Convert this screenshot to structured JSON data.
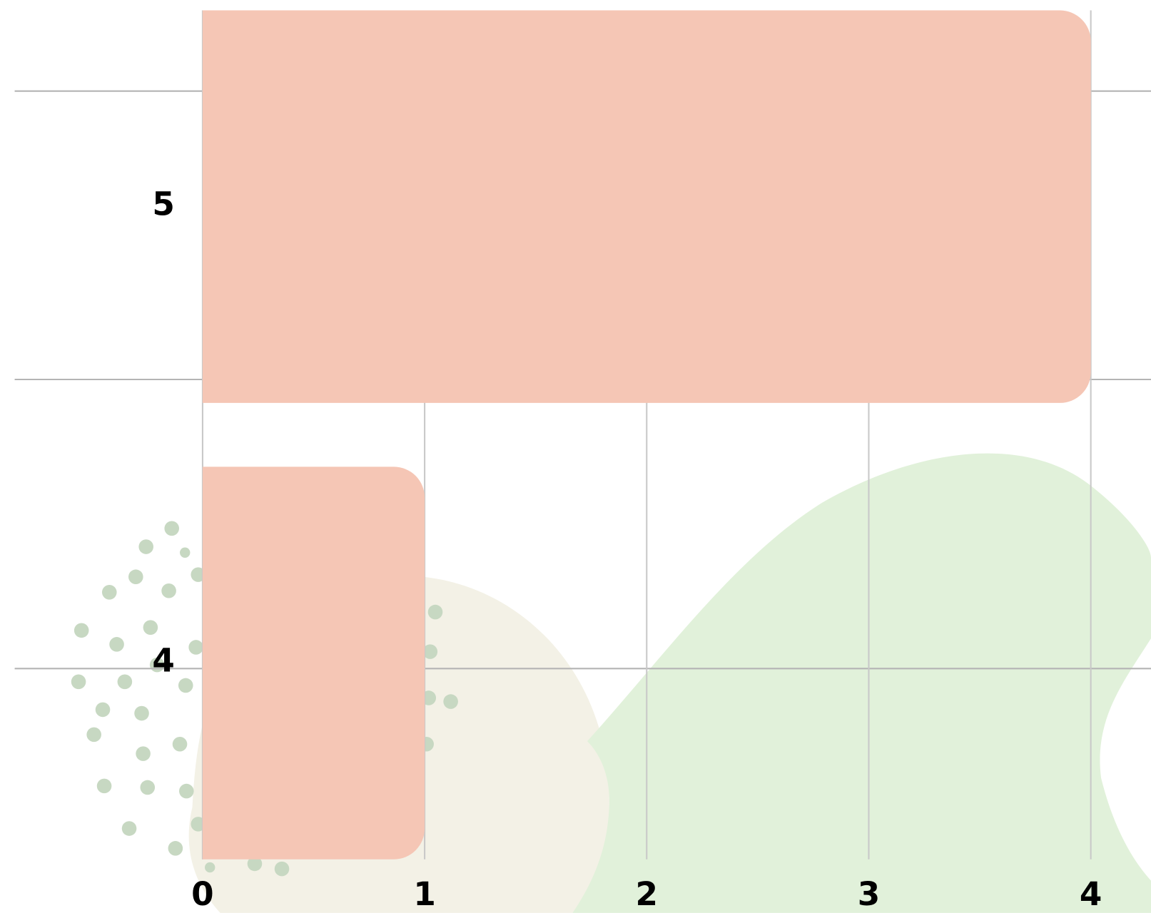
{
  "chart_data": {
    "type": "bar",
    "orientation": "horizontal",
    "categories": [
      "5",
      "4"
    ],
    "values": [
      4,
      1
    ],
    "color": "#f5c6b5",
    "xlim": [
      0,
      4
    ],
    "xticks": [
      0,
      1,
      2,
      3,
      4
    ],
    "grid": true
  }
}
